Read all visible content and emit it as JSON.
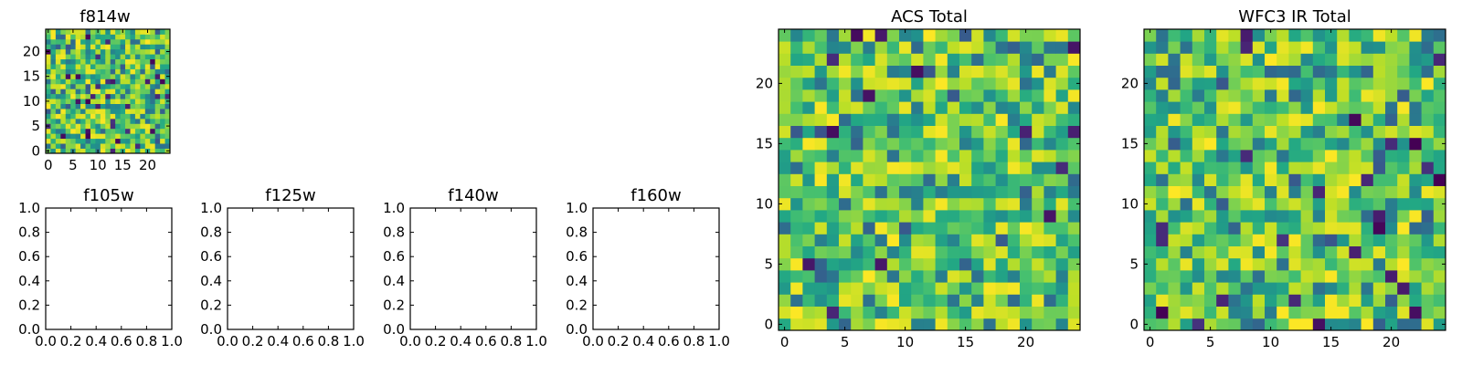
{
  "chart_data": [
    {
      "type": "heatmap",
      "title": "f814w",
      "grid_size": 25,
      "xlim": [
        -0.5,
        24.5
      ],
      "ylim": [
        -0.5,
        24.5
      ],
      "xticks": [
        0,
        5,
        10,
        15,
        20
      ],
      "yticks": [
        0,
        5,
        10,
        15,
        20
      ],
      "colormap": "viridis",
      "seed": 814
    },
    {
      "type": "heatmap",
      "title": "f105w",
      "empty": true,
      "xlim": [
        0,
        1
      ],
      "ylim": [
        0,
        1
      ],
      "xticks": [
        0.0,
        0.2,
        0.4,
        0.6,
        0.8,
        1.0
      ],
      "yticks": [
        0.0,
        0.2,
        0.4,
        0.6,
        0.8,
        1.0
      ]
    },
    {
      "type": "heatmap",
      "title": "f125w",
      "empty": true,
      "xlim": [
        0,
        1
      ],
      "ylim": [
        0,
        1
      ],
      "xticks": [
        0.0,
        0.2,
        0.4,
        0.6,
        0.8,
        1.0
      ],
      "yticks": [
        0.0,
        0.2,
        0.4,
        0.6,
        0.8,
        1.0
      ]
    },
    {
      "type": "heatmap",
      "title": "f140w",
      "empty": true,
      "xlim": [
        0,
        1
      ],
      "ylim": [
        0,
        1
      ],
      "xticks": [
        0.0,
        0.2,
        0.4,
        0.6,
        0.8,
        1.0
      ],
      "yticks": [
        0.0,
        0.2,
        0.4,
        0.6,
        0.8,
        1.0
      ]
    },
    {
      "type": "heatmap",
      "title": "f160w",
      "empty": true,
      "xlim": [
        0,
        1
      ],
      "ylim": [
        0,
        1
      ],
      "xticks": [
        0.0,
        0.2,
        0.4,
        0.6,
        0.8,
        1.0
      ],
      "yticks": [
        0.0,
        0.2,
        0.4,
        0.6,
        0.8,
        1.0
      ]
    },
    {
      "type": "heatmap",
      "title": "ACS Total",
      "grid_size": 25,
      "xlim": [
        -0.5,
        24.5
      ],
      "ylim": [
        -0.5,
        24.5
      ],
      "xticks": [
        0,
        5,
        10,
        15,
        20
      ],
      "yticks": [
        0,
        5,
        10,
        15,
        20
      ],
      "colormap": "viridis",
      "seed": 2718
    },
    {
      "type": "heatmap",
      "title": "WFC3 IR Total",
      "grid_size": 25,
      "xlim": [
        -0.5,
        24.5
      ],
      "ylim": [
        -0.5,
        24.5
      ],
      "xticks": [
        0,
        5,
        10,
        15,
        20
      ],
      "yticks": [
        0,
        5,
        10,
        15,
        20
      ],
      "colormap": "viridis",
      "seed": 3141
    }
  ]
}
